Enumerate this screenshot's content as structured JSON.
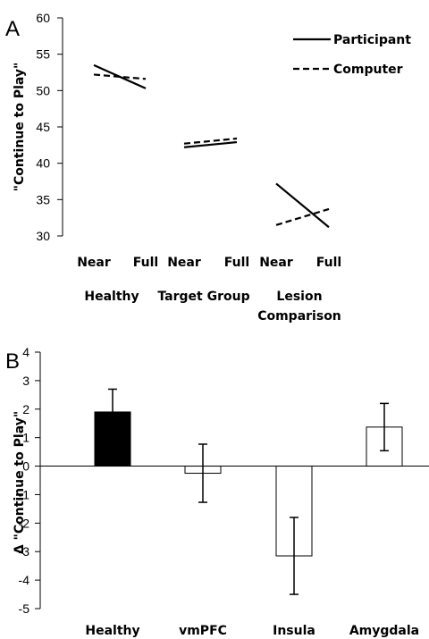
{
  "chart_data": [
    {
      "panel": "A",
      "type": "line",
      "ylabel": "\"Continue to Play\"",
      "ylim": [
        30,
        60
      ],
      "yticks": [
        30,
        35,
        40,
        45,
        50,
        55,
        60
      ],
      "groups": [
        {
          "label": "Healthy",
          "conditions": [
            "Near",
            "Full"
          ]
        },
        {
          "label": "Target Group",
          "conditions": [
            "Near",
            "Full"
          ]
        },
        {
          "label_lines": [
            "Lesion",
            "Comparison"
          ],
          "conditions": [
            "Near",
            "Full"
          ]
        }
      ],
      "series": [
        {
          "name": "Participant",
          "style": "solid",
          "values": [
            [
              53.5,
              50.3
            ],
            [
              42.2,
              42.9
            ],
            [
              37.2,
              31.2
            ]
          ]
        },
        {
          "name": "Computer",
          "style": "dashed",
          "values": [
            [
              52.2,
              51.6
            ],
            [
              42.7,
              43.4
            ],
            [
              31.5,
              33.7
            ]
          ]
        }
      ],
      "legend_position": "top-right",
      "grid": false
    },
    {
      "panel": "B",
      "type": "bar",
      "ylabel": "Δ \"Continue to Play\"",
      "ylim": [
        -5,
        4
      ],
      "yticks": [
        -5,
        -4,
        -3,
        -2,
        -1,
        0,
        1,
        2,
        3,
        4
      ],
      "categories": [
        "Healthy",
        "vmPFC",
        "Insula",
        "Amygdala"
      ],
      "values": [
        1.9,
        -0.25,
        -3.15,
        1.37
      ],
      "errors": [
        0.8,
        1.02,
        1.35,
        0.83
      ],
      "fills": [
        "#000000",
        "#ffffff",
        "#ffffff",
        "#ffffff"
      ],
      "grid": false
    }
  ],
  "colors": {
    "ink": "#000000",
    "background": "#ffffff"
  }
}
